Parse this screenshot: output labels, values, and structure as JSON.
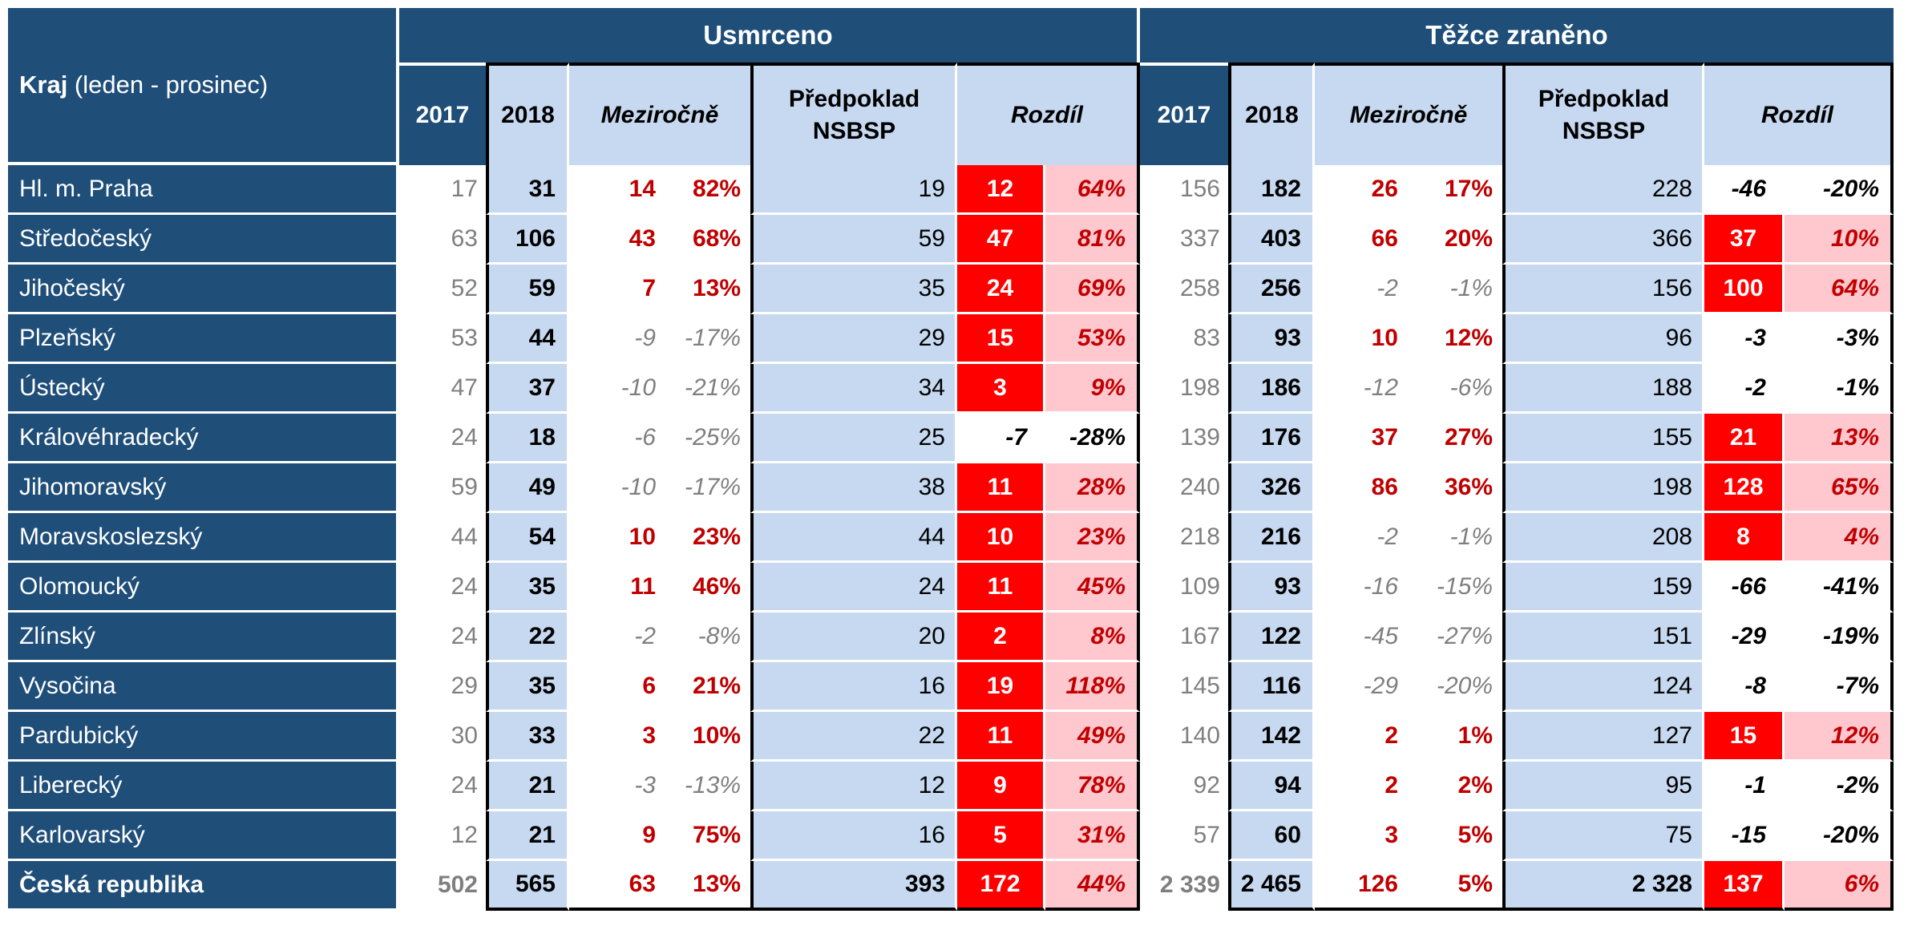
{
  "header": {
    "kraj_bold": "Kraj",
    "kraj_rest": " (leden - prosinec)",
    "section_usmrceno": "Usmrceno",
    "section_tezce": "Těžce zraněno",
    "col_2017": "2017",
    "col_2018": "2018",
    "col_mezirocne": "Meziročně",
    "col_predpoklad_line1": "Předpoklad",
    "col_predpoklad_line2": "NSBSP",
    "col_rozdil": "Rozdíl"
  },
  "colors": {
    "navy": "#1F4E79",
    "light_blue": "#C6D9F0",
    "red": "#FF0000",
    "pink": "#FFC7CE",
    "dark_red": "#C00000",
    "gray": "#7F7F7F"
  },
  "rows": [
    {
      "kraj": "Hl. m. Praha",
      "total": false,
      "usmrceno": {
        "y2017": "17",
        "y2018": "31",
        "mez": [
          "14",
          "82%"
        ],
        "pred": "19",
        "roz": [
          "12",
          "64%"
        ]
      },
      "tezce": {
        "y2017": "156",
        "y2018": "182",
        "mez": [
          "26",
          "17%"
        ],
        "pred": "228",
        "roz": [
          "-46",
          "-20%"
        ]
      }
    },
    {
      "kraj": "Středočeský",
      "total": false,
      "usmrceno": {
        "y2017": "63",
        "y2018": "106",
        "mez": [
          "43",
          "68%"
        ],
        "pred": "59",
        "roz": [
          "47",
          "81%"
        ]
      },
      "tezce": {
        "y2017": "337",
        "y2018": "403",
        "mez": [
          "66",
          "20%"
        ],
        "pred": "366",
        "roz": [
          "37",
          "10%"
        ]
      }
    },
    {
      "kraj": "Jihočeský",
      "total": false,
      "usmrceno": {
        "y2017": "52",
        "y2018": "59",
        "mez": [
          "7",
          "13%"
        ],
        "pred": "35",
        "roz": [
          "24",
          "69%"
        ]
      },
      "tezce": {
        "y2017": "258",
        "y2018": "256",
        "mez": [
          "-2",
          "-1%"
        ],
        "pred": "156",
        "roz": [
          "100",
          "64%"
        ]
      }
    },
    {
      "kraj": "Plzeňský",
      "total": false,
      "usmrceno": {
        "y2017": "53",
        "y2018": "44",
        "mez": [
          "-9",
          "-17%"
        ],
        "pred": "29",
        "roz": [
          "15",
          "53%"
        ]
      },
      "tezce": {
        "y2017": "83",
        "y2018": "93",
        "mez": [
          "10",
          "12%"
        ],
        "pred": "96",
        "roz": [
          "-3",
          "-3%"
        ]
      }
    },
    {
      "kraj": "Ústecký",
      "total": false,
      "usmrceno": {
        "y2017": "47",
        "y2018": "37",
        "mez": [
          "-10",
          "-21%"
        ],
        "pred": "34",
        "roz": [
          "3",
          "9%"
        ]
      },
      "tezce": {
        "y2017": "198",
        "y2018": "186",
        "mez": [
          "-12",
          "-6%"
        ],
        "pred": "188",
        "roz": [
          "-2",
          "-1%"
        ]
      }
    },
    {
      "kraj": "Královéhradecký",
      "total": false,
      "usmrceno": {
        "y2017": "24",
        "y2018": "18",
        "mez": [
          "-6",
          "-25%"
        ],
        "pred": "25",
        "roz": [
          "-7",
          "-28%"
        ]
      },
      "tezce": {
        "y2017": "139",
        "y2018": "176",
        "mez": [
          "37",
          "27%"
        ],
        "pred": "155",
        "roz": [
          "21",
          "13%"
        ]
      }
    },
    {
      "kraj": "Jihomoravský",
      "total": false,
      "usmrceno": {
        "y2017": "59",
        "y2018": "49",
        "mez": [
          "-10",
          "-17%"
        ],
        "pred": "38",
        "roz": [
          "11",
          "28%"
        ]
      },
      "tezce": {
        "y2017": "240",
        "y2018": "326",
        "mez": [
          "86",
          "36%"
        ],
        "pred": "198",
        "roz": [
          "128",
          "65%"
        ]
      }
    },
    {
      "kraj": "Moravskoslezský",
      "total": false,
      "usmrceno": {
        "y2017": "44",
        "y2018": "54",
        "mez": [
          "10",
          "23%"
        ],
        "pred": "44",
        "roz": [
          "10",
          "23%"
        ]
      },
      "tezce": {
        "y2017": "218",
        "y2018": "216",
        "mez": [
          "-2",
          "-1%"
        ],
        "pred": "208",
        "roz": [
          "8",
          "4%"
        ]
      }
    },
    {
      "kraj": "Olomoucký",
      "total": false,
      "usmrceno": {
        "y2017": "24",
        "y2018": "35",
        "mez": [
          "11",
          "46%"
        ],
        "pred": "24",
        "roz": [
          "11",
          "45%"
        ]
      },
      "tezce": {
        "y2017": "109",
        "y2018": "93",
        "mez": [
          "-16",
          "-15%"
        ],
        "pred": "159",
        "roz": [
          "-66",
          "-41%"
        ]
      }
    },
    {
      "kraj": "Zlínský",
      "total": false,
      "usmrceno": {
        "y2017": "24",
        "y2018": "22",
        "mez": [
          "-2",
          "-8%"
        ],
        "pred": "20",
        "roz": [
          "2",
          "8%"
        ]
      },
      "tezce": {
        "y2017": "167",
        "y2018": "122",
        "mez": [
          "-45",
          "-27%"
        ],
        "pred": "151",
        "roz": [
          "-29",
          "-19%"
        ]
      }
    },
    {
      "kraj": "Vysočina",
      "total": false,
      "usmrceno": {
        "y2017": "29",
        "y2018": "35",
        "mez": [
          "6",
          "21%"
        ],
        "pred": "16",
        "roz": [
          "19",
          "118%"
        ]
      },
      "tezce": {
        "y2017": "145",
        "y2018": "116",
        "mez": [
          "-29",
          "-20%"
        ],
        "pred": "124",
        "roz": [
          "-8",
          "-7%"
        ]
      }
    },
    {
      "kraj": "Pardubický",
      "total": false,
      "usmrceno": {
        "y2017": "30",
        "y2018": "33",
        "mez": [
          "3",
          "10%"
        ],
        "pred": "22",
        "roz": [
          "11",
          "49%"
        ]
      },
      "tezce": {
        "y2017": "140",
        "y2018": "142",
        "mez": [
          "2",
          "1%"
        ],
        "pred": "127",
        "roz": [
          "15",
          "12%"
        ]
      }
    },
    {
      "kraj": "Liberecký",
      "total": false,
      "usmrceno": {
        "y2017": "24",
        "y2018": "21",
        "mez": [
          "-3",
          "-13%"
        ],
        "pred": "12",
        "roz": [
          "9",
          "78%"
        ]
      },
      "tezce": {
        "y2017": "92",
        "y2018": "94",
        "mez": [
          "2",
          "2%"
        ],
        "pred": "95",
        "roz": [
          "-1",
          "-2%"
        ]
      }
    },
    {
      "kraj": "Karlovarský",
      "total": false,
      "usmrceno": {
        "y2017": "12",
        "y2018": "21",
        "mez": [
          "9",
          "75%"
        ],
        "pred": "16",
        "roz": [
          "5",
          "31%"
        ]
      },
      "tezce": {
        "y2017": "57",
        "y2018": "60",
        "mez": [
          "3",
          "5%"
        ],
        "pred": "75",
        "roz": [
          "-15",
          "-20%"
        ]
      }
    },
    {
      "kraj": "Česká republika",
      "total": true,
      "usmrceno": {
        "y2017": "502",
        "y2018": "565",
        "mez": [
          "63",
          "13%"
        ],
        "pred": "393",
        "roz": [
          "172",
          "44%"
        ]
      },
      "tezce": {
        "y2017": "2 339",
        "y2018": "2 465",
        "mez": [
          "126",
          "5%"
        ],
        "pred": "2 328",
        "roz": [
          "137",
          "6%"
        ]
      }
    }
  ]
}
